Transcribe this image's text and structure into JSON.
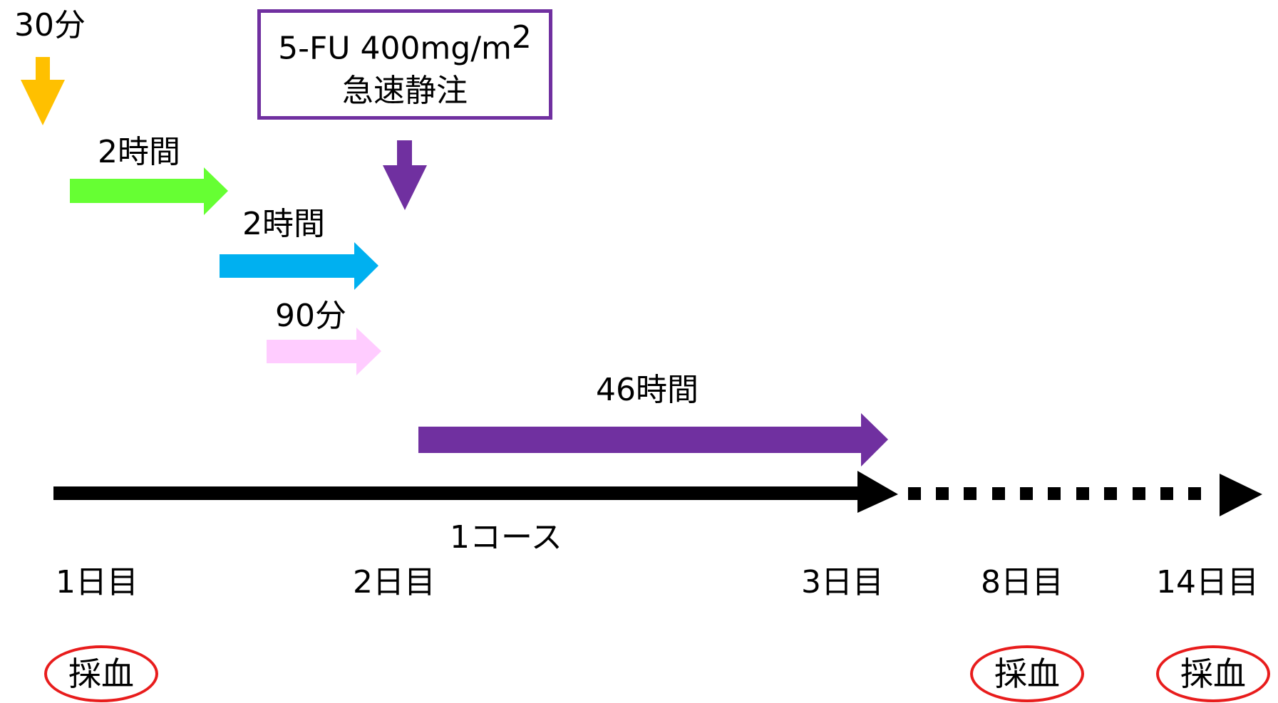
{
  "colors": {
    "yellow": "#ffc000",
    "green": "#66ff33",
    "blue": "#00b0f0",
    "pink": "#ffccff",
    "purple": "#7030a0",
    "red": "#e81c1c",
    "black": "#000000"
  },
  "drugs": {
    "bolus_box": {
      "line1": "5-FU 400mg/m",
      "superscript": "2",
      "line2": "急速静注"
    }
  },
  "durations": {
    "yellow": "30分",
    "green": "2時間",
    "blue": "2時間",
    "pink": "90分",
    "purple": "46時間"
  },
  "timeline": {
    "course_label": "1コース",
    "days": [
      "1日目",
      "2日目",
      "3日目",
      "8日目",
      "14日目"
    ]
  },
  "sampling": {
    "label": "採血",
    "days": [
      "1日目",
      "8日目",
      "14日目"
    ]
  }
}
